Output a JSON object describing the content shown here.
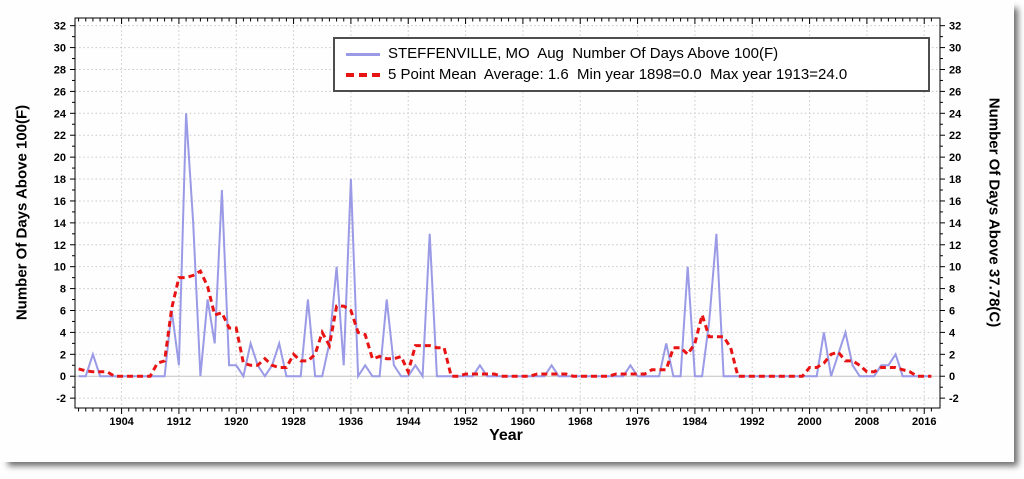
{
  "legend": {
    "series1": "STEFFENVILLE, MO  Aug  Number Of Days Above 100(F)",
    "series2": "5 Point Mean  Average: 1.6  Min year 1898=0.0  Max year 1913=24.0"
  },
  "axes": {
    "left_title": "Number Of Days Above 100(F)",
    "right_title": "Number Of Days Above 37.78(C)",
    "x_title": "Year",
    "y_ticks": [
      -2,
      0,
      2,
      4,
      6,
      8,
      10,
      12,
      14,
      16,
      18,
      20,
      22,
      24,
      26,
      28,
      30,
      32
    ],
    "x_ticks": [
      1904,
      1912,
      1920,
      1928,
      1936,
      1944,
      1952,
      1960,
      1968,
      1976,
      1984,
      1992,
      2000,
      2008,
      2016
    ],
    "y_range": [
      -2.9,
      32.7
    ],
    "x_range": [
      1897.5,
      2018.2
    ]
  },
  "colors": {
    "series_line": "#9a9ae6",
    "mean_line": "#e81414",
    "grid": "#c7c7c7",
    "zero_line": "#c2c2c2",
    "frame": "#000000",
    "text": "#000000"
  },
  "chart_data": {
    "type": "line",
    "title": "STEFFENVILLE, MO Aug Number Of Days Above 100(F)",
    "xlabel": "Year",
    "ylabel_left": "Number Of Days Above 100(F)",
    "ylabel_right": "Number Of Days Above 37.78(C)",
    "grid": true,
    "legend_position": "top-center-inside",
    "x": [
      1898,
      1899,
      1900,
      1901,
      1902,
      1903,
      1904,
      1905,
      1906,
      1907,
      1908,
      1909,
      1910,
      1911,
      1912,
      1913,
      1914,
      1915,
      1916,
      1917,
      1918,
      1919,
      1920,
      1921,
      1922,
      1923,
      1924,
      1925,
      1926,
      1927,
      1928,
      1929,
      1930,
      1931,
      1932,
      1933,
      1934,
      1935,
      1936,
      1937,
      1938,
      1939,
      1940,
      1941,
      1942,
      1943,
      1944,
      1945,
      1946,
      1947,
      1948,
      1949,
      1950,
      1951,
      1952,
      1953,
      1954,
      1955,
      1956,
      1957,
      1958,
      1959,
      1960,
      1961,
      1962,
      1963,
      1964,
      1965,
      1966,
      1967,
      1968,
      1969,
      1970,
      1971,
      1972,
      1973,
      1974,
      1975,
      1976,
      1977,
      1978,
      1979,
      1980,
      1981,
      1982,
      1983,
      1984,
      1985,
      1986,
      1987,
      1988,
      1989,
      1990,
      1991,
      1992,
      1993,
      1994,
      1995,
      1996,
      1997,
      1998,
      1999,
      2000,
      2001,
      2002,
      2003,
      2004,
      2005,
      2006,
      2007,
      2008,
      2009,
      2010,
      2011,
      2012,
      2013,
      2014,
      2015,
      2016,
      2017
    ],
    "series": [
      {
        "name": "STEFFENVILLE, MO  Aug  Number Of Days Above 100(F)",
        "style": "solid",
        "values": [
          0,
          0,
          2,
          0,
          0,
          0,
          0,
          0,
          0,
          0,
          0,
          0,
          0,
          6,
          1,
          24,
          14,
          0,
          7,
          3,
          17,
          1,
          1,
          0,
          3,
          1,
          0,
          1,
          3,
          0,
          0,
          0,
          7,
          0,
          0,
          3,
          10,
          1,
          18,
          0,
          1,
          0,
          0,
          7,
          1,
          0,
          0,
          1,
          0,
          13,
          0,
          0,
          0,
          0,
          0,
          0,
          1,
          0,
          0,
          0,
          0,
          0,
          0,
          0,
          0,
          0,
          1,
          0,
          0,
          0,
          0,
          0,
          0,
          0,
          0,
          0,
          0,
          1,
          0,
          0,
          0,
          0,
          3,
          0,
          0,
          10,
          0,
          0,
          5,
          13,
          0,
          0,
          0,
          0,
          0,
          0,
          0,
          0,
          0,
          0,
          0,
          0,
          0,
          0,
          4,
          0,
          2,
          4,
          1,
          0,
          0,
          0,
          1,
          1,
          2,
          0,
          0,
          0,
          0,
          0
        ]
      },
      {
        "name": "5 Point Mean",
        "style": "dashed",
        "derived": "centered 5-point moving average of series 1"
      }
    ],
    "stats": {
      "average": 1.6,
      "min_year": 1898,
      "min_value": 0.0,
      "max_year": 1913,
      "max_value": 24.0
    },
    "ylim": [
      -2.9,
      32.7
    ],
    "xlim": [
      1897.5,
      2018.2
    ]
  }
}
